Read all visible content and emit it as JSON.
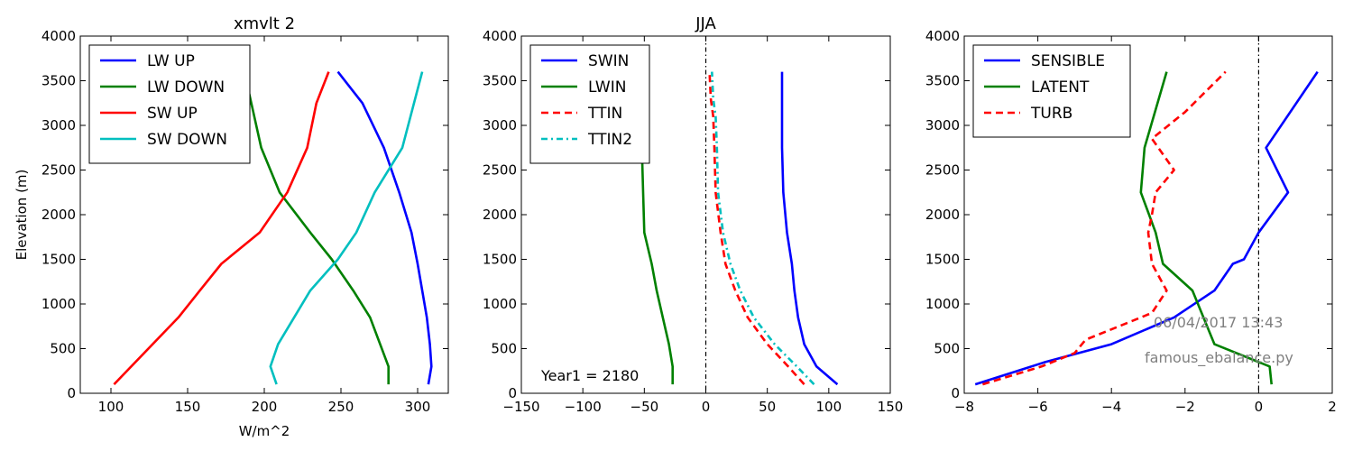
{
  "annotations": {
    "year_label": "Year1 = 2180",
    "timestamp": "06/04/2017 13:43",
    "script_name": "famous_ebalance.py",
    "timestamp_color": "#808080"
  },
  "chart_data": [
    {
      "type": "line",
      "title": "xmvlt 2",
      "xlabel": "W/m^2",
      "ylabel": "Elevation (m)",
      "xlim": [
        80,
        320
      ],
      "ylim": [
        0,
        4000
      ],
      "xticks": [
        100,
        150,
        200,
        250,
        300
      ],
      "yticks": [
        0,
        500,
        1000,
        1500,
        2000,
        2500,
        3000,
        3500,
        4000
      ],
      "grid": false,
      "legend_position": "upper-left",
      "vline_at_zero": false,
      "series": [
        {
          "name": "LW UP",
          "color": "#0000ff",
          "dash": "solid",
          "x": [
            307,
            309,
            308,
            306,
            303,
            300,
            296,
            288,
            278,
            264,
            248
          ],
          "y": [
            100,
            300,
            550,
            850,
            1150,
            1450,
            1800,
            2250,
            2750,
            3250,
            3600
          ]
        },
        {
          "name": "LW DOWN",
          "color": "#008000",
          "dash": "solid",
          "x": [
            281,
            281,
            269,
            258,
            244,
            230,
            210,
            198,
            187
          ],
          "y": [
            100,
            300,
            850,
            1150,
            1500,
            1800,
            2250,
            2750,
            3600
          ]
        },
        {
          "name": "SW UP",
          "color": "#ff0000",
          "dash": "solid",
          "x": [
            102,
            144,
            158,
            172,
            197,
            215,
            228,
            234,
            242
          ],
          "y": [
            100,
            850,
            1150,
            1450,
            1800,
            2250,
            2750,
            3250,
            3600
          ]
        },
        {
          "name": "SW DOWN",
          "color": "#00bfbf",
          "dash": "solid",
          "x": [
            208,
            204,
            209,
            230,
            248,
            260,
            272,
            290,
            303
          ],
          "y": [
            100,
            300,
            550,
            1150,
            1500,
            1800,
            2250,
            2750,
            3600
          ]
        }
      ]
    },
    {
      "type": "line",
      "title": "JJA",
      "xlabel": "",
      "ylabel": "",
      "xlim": [
        -150,
        150
      ],
      "ylim": [
        0,
        4000
      ],
      "xticks": [
        -150,
        -100,
        -50,
        0,
        50,
        100,
        150
      ],
      "yticks": [
        0,
        500,
        1000,
        1500,
        2000,
        2500,
        3000,
        3500,
        4000
      ],
      "grid": false,
      "legend_position": "upper-left",
      "vline_at_zero": true,
      "series": [
        {
          "name": "SWIN",
          "color": "#0000ff",
          "dash": "solid",
          "x": [
            107,
            90,
            80,
            75,
            72,
            70,
            66,
            63,
            62,
            62,
            62
          ],
          "y": [
            100,
            300,
            550,
            850,
            1150,
            1450,
            1800,
            2250,
            2750,
            3250,
            3600
          ]
        },
        {
          "name": "LWIN",
          "color": "#008000",
          "dash": "solid",
          "x": [
            -27,
            -27,
            -30,
            -35,
            -40,
            -44,
            -50,
            -51,
            -52,
            -53
          ],
          "y": [
            100,
            300,
            550,
            850,
            1150,
            1450,
            1800,
            2250,
            2750,
            2900
          ]
        },
        {
          "name": "TTIN",
          "color": "#ff0000",
          "dash": "dashed",
          "x": [
            80,
            67,
            50,
            34,
            24,
            16,
            12,
            8,
            7,
            6,
            4,
            3
          ],
          "y": [
            100,
            300,
            550,
            850,
            1150,
            1450,
            1800,
            2250,
            2750,
            3100,
            3300,
            3600
          ]
        },
        {
          "name": "TTIN2",
          "color": "#00bfbf",
          "dash": "dashdot",
          "x": [
            88,
            74,
            56,
            39,
            28,
            20,
            14,
            10,
            9,
            8,
            6,
            5
          ],
          "y": [
            100,
            300,
            550,
            850,
            1150,
            1450,
            1800,
            2250,
            2750,
            3100,
            3300,
            3600
          ]
        }
      ]
    },
    {
      "type": "line",
      "title": "",
      "xlabel": "",
      "ylabel": "",
      "xlim": [
        -8,
        2
      ],
      "ylim": [
        0,
        4000
      ],
      "xticks": [
        -8,
        -6,
        -4,
        -2,
        0,
        2
      ],
      "yticks": [
        0,
        500,
        1000,
        1500,
        2000,
        2500,
        3000,
        3500,
        4000
      ],
      "grid": false,
      "legend_position": "upper-left",
      "vline_at_zero": true,
      "series": [
        {
          "name": "SENSIBLE",
          "color": "#0000ff",
          "dash": "solid",
          "x": [
            -7.7,
            -5.8,
            -4.0,
            -2.3,
            -1.2,
            -0.7,
            -0.4,
            0.0,
            0.8,
            0.2,
            1.6
          ],
          "y": [
            100,
            350,
            550,
            850,
            1150,
            1450,
            1500,
            1800,
            2250,
            2750,
            3600
          ]
        },
        {
          "name": "LATENT",
          "color": "#008000",
          "dash": "solid",
          "x": [
            0.35,
            0.3,
            -1.2,
            -1.8,
            -2.6,
            -2.8,
            -3.2,
            -3.1,
            -2.5
          ],
          "y": [
            100,
            300,
            550,
            1150,
            1450,
            1800,
            2250,
            2750,
            3600
          ]
        },
        {
          "name": "TURB",
          "color": "#ff0000",
          "dash": "dashed",
          "x": [
            -7.5,
            -5.9,
            -5.0,
            -4.7,
            -3.8,
            -2.9,
            -2.5,
            -2.9,
            -3.0,
            -2.9,
            -2.8,
            -2.3,
            -2.9,
            -2.0,
            -0.9
          ],
          "y": [
            100,
            300,
            450,
            600,
            750,
            900,
            1150,
            1450,
            1800,
            2000,
            2250,
            2500,
            2850,
            3150,
            3600
          ]
        }
      ]
    }
  ]
}
